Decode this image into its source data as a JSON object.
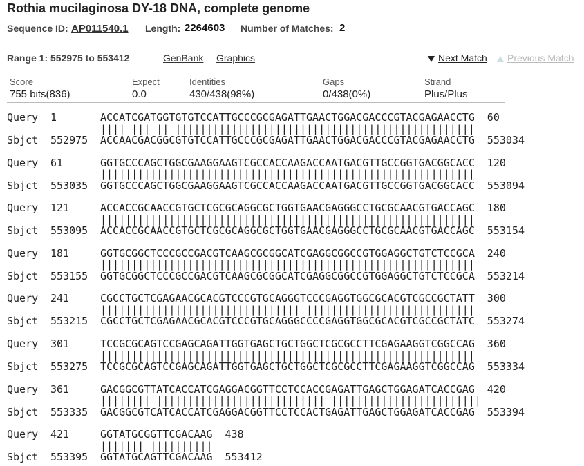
{
  "title": "Rothia mucilaginosa DY-18 DNA, complete genome",
  "sequence_id_label": "Sequence ID:",
  "sequence_id": "AP011540.1",
  "length_label": "Length:",
  "length": 2264603,
  "matches_label": "Number of Matches:",
  "matches": 2,
  "range": "Range 1: 552975 to 553412",
  "links": [
    "GenBank",
    "Graphics"
  ],
  "next_match": "Next Match",
  "previous_match": "Previous Match",
  "stats": {
    "headers": [
      "Score",
      "Expect",
      "Identities",
      "Gaps",
      "Strand"
    ],
    "values": [
      "755 bits(836)",
      "0.0",
      "430/438(98%)",
      "0/438(0%)",
      "Plus/Plus"
    ]
  },
  "query_label": "Query",
  "sbjct_label": "Sbjct",
  "alignment": [
    {
      "query_start": 1,
      "query_seq": "ACCATCGATGGTGTGTCCATTGCCCGCGAGATTGAACTGGACGACCCGTACGAGAACCTG",
      "query_end": 60,
      "match": "|||| ||| || ||||||||||||||||||||||||||||||||||||||||||||||||",
      "sbjct_start": 552975,
      "sbjct_seq": "ACCAACGACGGCGTGTCCATTGCCCGCGAGATTGAACTGGACGACCCGTACGAGAACCTG",
      "sbjct_end": 553034
    },
    {
      "query_start": 61,
      "query_seq": "GGTGCCCAGCTGGCGAAGGAAGTCGCCACCAAGACCAATGACGTTGCCGGTGACGGCACC",
      "query_end": 120,
      "match": "||||||||||||||||||||||||||||||||||||||||||||||||||||||||||||",
      "sbjct_start": 553035,
      "sbjct_seq": "GGTGCCCAGCTGGCGAAGGAAGTCGCCACCAAGACCAATGACGTTGCCGGTGACGGCACC",
      "sbjct_end": 553094
    },
    {
      "query_start": 121,
      "query_seq": "ACCACCGCAACCGTGCTCGCGCAGGCGCTGGTGAACGAGGGCCTGCGCAACGTGACCAGC",
      "query_end": 180,
      "match": "||||||||||||||||||||||||||||||||||||||||||||||||||||||||||||",
      "sbjct_start": 553095,
      "sbjct_seq": "ACCACCGCAACCGTGCTCGCGCAGGCGCTGGTGAACGAGGGCCTGCGCAACGTGACCAGC",
      "sbjct_end": 553154
    },
    {
      "query_start": 181,
      "query_seq": "GGTGCGGCTCCCGCCGACGTCAAGCGCGGCATCGAGGCGGCCGTGGAGGCTGTCTCCGCA",
      "query_end": 240,
      "match": "||||||||||||||||||||||||||||||||||||||||||||||||||||||||||||",
      "sbjct_start": 553155,
      "sbjct_seq": "GGTGCGGCTCCCGCCGACGTCAAGCGCGGCATCGAGGCGGCCGTGGAGGCTGTCTCCGCA",
      "sbjct_end": 553214
    },
    {
      "query_start": 241,
      "query_seq": "CGCCTGCTCGAGAACGCACGTCCCGTGCAGGGTCCCGAGGTGGCGCACGTCGCCGCTATT",
      "query_end": 300,
      "match": "|||||||||||||||||||||||||||||||| ||||||||||||||||||||||||||| ",
      "sbjct_start": 553215,
      "sbjct_seq": "CGCCTGCTCGAGAACGCACGTCCCGTGCAGGGCCCCGAGGTGGCGCACGTCGCCGCTATC",
      "sbjct_end": 553274
    },
    {
      "query_start": 301,
      "query_seq": "TCCGCGCAGTCCGAGCAGATTGGTGAGCTGCTGGCTCGCGCCTTCGAGAAGGTCGGCCAG",
      "query_end": 360,
      "match": "||||||||||||||||||||||||||||||||||||||||||||||||||||||||||||",
      "sbjct_start": 553275,
      "sbjct_seq": "TCCGCGCAGTCCGAGCAGATTGGTGAGCTGCTGGCTCGCGCCTTCGAGAAGGTCGGCCAG",
      "sbjct_end": 553334
    },
    {
      "query_start": 361,
      "query_seq": "GACGGCGTTATCACCATCGAGGACGGTTCCTCCACCGAGATTGAGCTGGAGATCACCGAG",
      "query_end": 420,
      "match": "|||||||| ||||||||||||||||||||||||||| ||||||||||||||||||||||||",
      "sbjct_start": 553335,
      "sbjct_seq": "GACGGCGTCATCACCATCGAGGACGGTTCCTCCACTGAGATTGAGCTGGAGATCACCGAG",
      "sbjct_end": 553394
    },
    {
      "query_start": 421,
      "query_seq": "GGTATGCGGTTCGACAAG",
      "query_end": 438,
      "match": "||||||| ||||||||||",
      "sbjct_start": 553395,
      "sbjct_seq": "GGTATGCAGTTCGACAAG",
      "sbjct_end": 553412
    }
  ]
}
